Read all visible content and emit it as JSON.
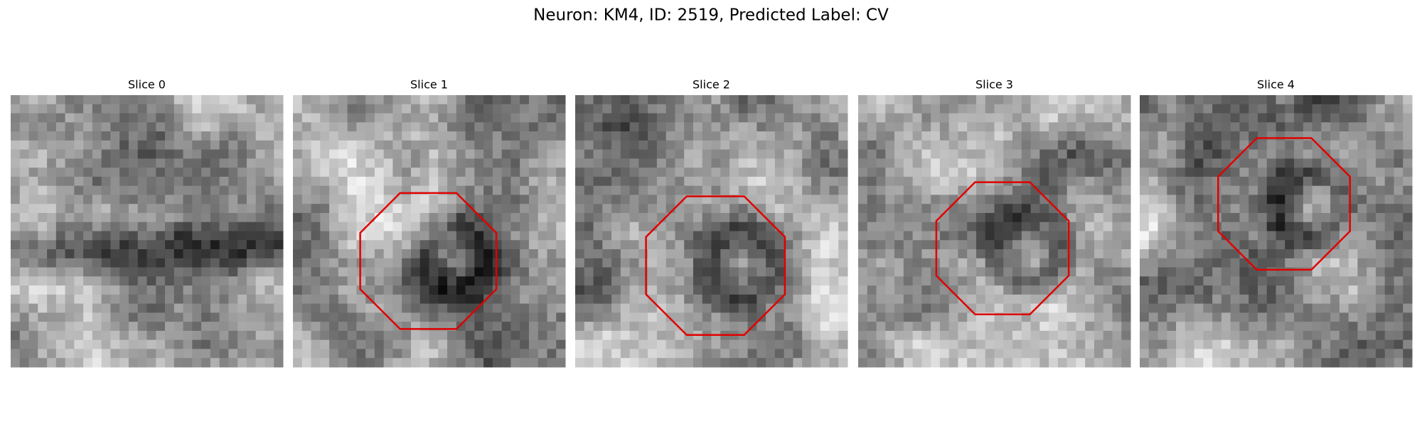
{
  "title": "Neuron: KM4, ID: 2519, Predicted Label: CV",
  "panels": [
    {
      "title": "Slice 0"
    },
    {
      "title": "Slice 1"
    },
    {
      "title": "Slice 2"
    },
    {
      "title": "Slice 3"
    },
    {
      "title": "Slice 4"
    }
  ]
}
